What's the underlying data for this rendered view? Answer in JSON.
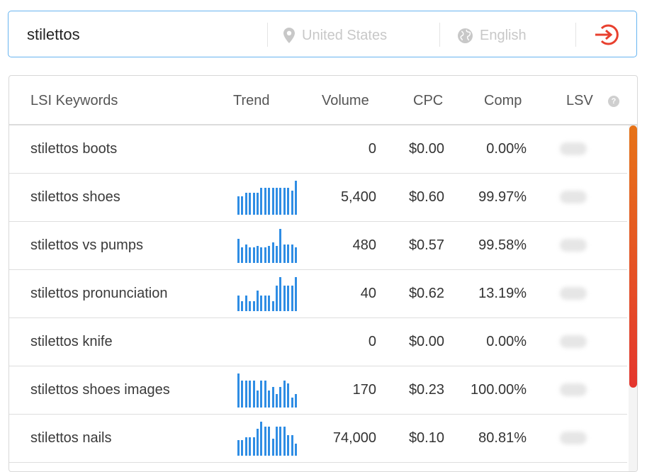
{
  "search": {
    "query": "stilettos",
    "location_placeholder": "United States",
    "language_placeholder": "English"
  },
  "icons": {
    "location": "map-pin-icon",
    "language": "globe-icon",
    "submit": "sign-in-arrow-icon",
    "help": "question-circle-icon"
  },
  "colors": {
    "accent": "#e8402f",
    "bars": "#2f8de4",
    "border_focus": "#68b4f0",
    "scroll_top": "#e67318",
    "scroll_bottom": "#e4362e"
  },
  "table": {
    "headers": {
      "keyword": "LSI Keywords",
      "trend": "Trend",
      "volume": "Volume",
      "cpc": "CPC",
      "comp": "Comp",
      "lsv": "LSV"
    },
    "rows": [
      {
        "keyword": "stilettos boots",
        "trend": [],
        "volume": "0",
        "cpc": "$0.00",
        "comp": "0.00%"
      },
      {
        "keyword": "stilettos shoes",
        "trend": [
          0.55,
          0.55,
          0.65,
          0.65,
          0.65,
          0.65,
          0.8,
          0.8,
          0.8,
          0.8,
          0.8,
          0.8,
          0.8,
          0.8,
          0.7,
          1.0
        ],
        "volume": "5,400",
        "cpc": "$0.60",
        "comp": "99.97%"
      },
      {
        "keyword": "stilettos vs pumps",
        "trend": [
          0.7,
          0.45,
          0.55,
          0.45,
          0.45,
          0.5,
          0.45,
          0.45,
          0.5,
          0.6,
          0.5,
          1.0,
          0.55,
          0.55,
          0.55,
          0.45
        ],
        "volume": "480",
        "cpc": "$0.57",
        "comp": "99.58%"
      },
      {
        "keyword": "stilettos pronunciation",
        "trend": [
          0.45,
          0.3,
          0.45,
          0.3,
          0.3,
          0.6,
          0.45,
          0.45,
          0.45,
          0.3,
          0.75,
          1.0,
          0.75,
          0.75,
          0.75,
          1.0
        ],
        "volume": "40",
        "cpc": "$0.62",
        "comp": "13.19%"
      },
      {
        "keyword": "stilettos knife",
        "trend": [],
        "volume": "0",
        "cpc": "$0.00",
        "comp": "0.00%"
      },
      {
        "keyword": "stilettos shoes images",
        "trend": [
          1.0,
          0.8,
          0.8,
          0.8,
          0.8,
          0.5,
          0.8,
          0.8,
          0.5,
          0.6,
          0.4,
          0.6,
          0.8,
          0.7,
          0.3,
          0.4
        ],
        "volume": "170",
        "cpc": "$0.23",
        "comp": "100.00%"
      },
      {
        "keyword": "stilettos nails",
        "trend": [
          0.45,
          0.45,
          0.55,
          0.55,
          0.55,
          0.8,
          1.0,
          0.85,
          0.85,
          0.5,
          0.85,
          0.85,
          0.85,
          0.6,
          0.6,
          0.35
        ],
        "volume": "74,000",
        "cpc": "$0.10",
        "comp": "80.81%"
      }
    ]
  }
}
